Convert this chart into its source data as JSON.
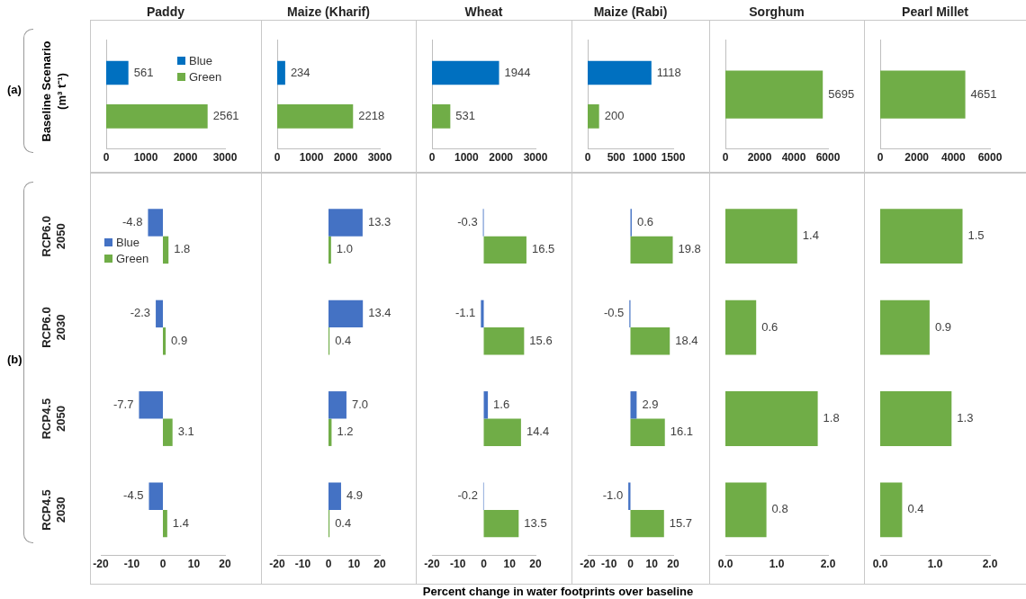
{
  "chart_data": [
    {
      "type": "bar",
      "orientation": "horizontal",
      "title": "Paddy",
      "ylabel": "Baseline Scenario (m³ t⁻¹)",
      "annotations": [
        "(a)"
      ],
      "categories": [
        null
      ],
      "series": [
        {
          "name": "Blue",
          "color": "#0070c0",
          "values": [
            561
          ]
        },
        {
          "name": "Green",
          "color": "#70ad47",
          "values": [
            2561
          ]
        }
      ],
      "xlim": [
        0,
        3000
      ],
      "xticks": [
        0,
        1000,
        2000,
        3000
      ],
      "data_labels": true,
      "legend": "top right",
      "tick_labels": "x"
    },
    {
      "type": "bar",
      "orientation": "horizontal",
      "title": "Maize (Kharif)",
      "categories": [
        null
      ],
      "series": [
        {
          "color": "#0070c0",
          "values": [
            234
          ]
        },
        {
          "color": "#70ad47",
          "values": [
            2218
          ]
        }
      ],
      "xlim": [
        0,
        3000
      ],
      "xticks": [
        0,
        1000,
        2000,
        3000
      ],
      "data_labels": true,
      "tick_labels": "x"
    },
    {
      "type": "bar",
      "orientation": "horizontal",
      "title": "Wheat",
      "categories": [
        null
      ],
      "series": [
        {
          "color": "#0070c0",
          "values": [
            1944
          ]
        },
        {
          "color": "#70ad47",
          "values": [
            531
          ]
        }
      ],
      "xlim": [
        0,
        3000
      ],
      "xticks": [
        0,
        1000,
        2000,
        3000
      ],
      "data_labels": true,
      "tick_labels": "x"
    },
    {
      "type": "bar",
      "orientation": "horizontal",
      "title": "Maize (Rabi)",
      "categories": [
        null
      ],
      "series": [
        {
          "color": "#0070c0",
          "values": [
            1118
          ]
        },
        {
          "color": "#70ad47",
          "values": [
            200
          ]
        }
      ],
      "xlim": [
        0,
        1500
      ],
      "xticks": [
        0,
        500,
        1000,
        1500
      ],
      "data_labels": true,
      "tick_labels": "x"
    },
    {
      "type": "bar",
      "orientation": "horizontal",
      "title": "Sorghum",
      "categories": [
        null
      ],
      "series": [
        {
          "color": "#70ad47",
          "values": [
            5695
          ]
        }
      ],
      "xlim": [
        0,
        6000
      ],
      "xticks": [
        0,
        2000,
        4000,
        6000
      ],
      "data_labels": true,
      "tick_labels": "x"
    },
    {
      "type": "bar",
      "orientation": "horizontal",
      "title": "Pearl Millet",
      "categories": [
        null
      ],
      "series": [
        {
          "color": "#70ad47",
          "values": [
            4651
          ]
        }
      ],
      "xlim": [
        0,
        6000
      ],
      "xticks": [
        0,
        2000,
        4000,
        6000
      ],
      "data_labels": true,
      "tick_labels": "x"
    },
    {
      "type": "bar",
      "orientation": "horizontal",
      "annotations": [
        "(b)"
      ],
      "categories": [
        "RCP6.0 2050",
        "RCP6.0 2030",
        "RCP4.5 2050",
        "RCP4.5 2030"
      ],
      "series": [
        {
          "name": "Blue",
          "color": "#4472c4",
          "values": [
            -4.8,
            -2.3,
            -7.7,
            -4.5
          ],
          "value_labels": [
            "-4.8",
            "-2.3",
            "-7.7",
            "-4.5"
          ]
        },
        {
          "name": "Green",
          "color": "#70ad47",
          "values": [
            1.8,
            0.9,
            3.1,
            1.4
          ],
          "value_labels": [
            "1.8",
            "0.9",
            "3.1",
            "1.4"
          ]
        }
      ],
      "xlim": [
        -20,
        20
      ],
      "xticks": [
        -20,
        -10,
        0,
        10,
        20
      ],
      "legend": "top left"
    },
    {
      "type": "bar",
      "orientation": "horizontal",
      "categories": [
        null,
        null,
        null,
        null
      ],
      "series": [
        {
          "color": "#4472c4",
          "values": [
            13.3,
            13.4,
            7.0,
            4.9
          ],
          "value_labels": [
            "13.3",
            "13.4",
            "7.0",
            "4.9"
          ]
        },
        {
          "color": "#70ad47",
          "values": [
            1.0,
            0.4,
            1.2,
            0.4
          ],
          "value_labels": [
            "1.0",
            "0.4",
            "1.2",
            "0.4"
          ]
        }
      ],
      "xlim": [
        -20,
        20
      ],
      "xticks": [
        -20,
        -10,
        0,
        10,
        20
      ],
      "tick_labels": "x"
    },
    {
      "type": "bar",
      "orientation": "horizontal",
      "xlabel": "Percent change in water footprints over baseline",
      "categories": [
        null,
        null,
        null,
        null
      ],
      "series": [
        {
          "color": "#4472c4",
          "values": [
            -0.3,
            -1.1,
            1.6,
            -0.2
          ],
          "value_labels": [
            "-0.3",
            "-1.1",
            "1.6",
            "-0.2"
          ]
        },
        {
          "color": "#70ad47",
          "values": [
            16.5,
            15.6,
            14.4,
            13.5
          ],
          "value_labels": [
            "16.5",
            "15.6",
            "14.4",
            "13.5"
          ]
        }
      ],
      "xlim": [
        -20,
        20
      ],
      "xticks": [
        -20,
        -10,
        0,
        10,
        20
      ],
      "tick_labels": "x"
    },
    {
      "type": "bar",
      "orientation": "horizontal",
      "categories": [
        null,
        null,
        null,
        null
      ],
      "series": [
        {
          "color": "#4472c4",
          "values": [
            0.6,
            -0.5,
            2.9,
            -1.0
          ],
          "value_labels": [
            "0.6",
            "-0.5",
            "2.9",
            "-1.0"
          ]
        },
        {
          "color": "#70ad47",
          "values": [
            19.8,
            18.4,
            16.1,
            15.7
          ],
          "value_labels": [
            "19.8",
            "18.4",
            "16.1",
            "15.7"
          ]
        }
      ],
      "xlim": [
        -20,
        20
      ],
      "xticks": [
        -20,
        -10,
        0,
        10,
        20
      ],
      "tick_labels": "x"
    },
    {
      "type": "bar",
      "orientation": "horizontal",
      "categories": [
        null,
        null,
        null,
        null
      ],
      "series": [
        {
          "color": "#70ad47",
          "values": [
            1.4,
            0.6,
            1.8,
            0.8
          ],
          "value_labels": [
            "1.4",
            "0.6",
            "1.8",
            "0.8"
          ]
        }
      ],
      "xlim": [
        0,
        2
      ],
      "xticks": [
        {
          "value": 0,
          "label": "0.0"
        },
        {
          "value": 1,
          "label": "1.0"
        },
        {
          "value": 2,
          "label": "2.0"
        }
      ],
      "tick_labels": "x"
    },
    {
      "type": "bar",
      "orientation": "horizontal",
      "categories": [
        null,
        null,
        null,
        null
      ],
      "series": [
        {
          "color": "#70ad47",
          "values": [
            1.5,
            0.9,
            1.3,
            0.4
          ],
          "value_labels": [
            "1.5",
            "0.9",
            "1.3",
            "0.4"
          ]
        }
      ],
      "xlim": [
        0,
        2
      ],
      "xticks": [
        {
          "value": 0,
          "label": "0.0"
        },
        {
          "value": 1,
          "label": "1.0"
        },
        {
          "value": 2,
          "label": "2.0"
        }
      ],
      "tick_labels": "x"
    }
  ]
}
